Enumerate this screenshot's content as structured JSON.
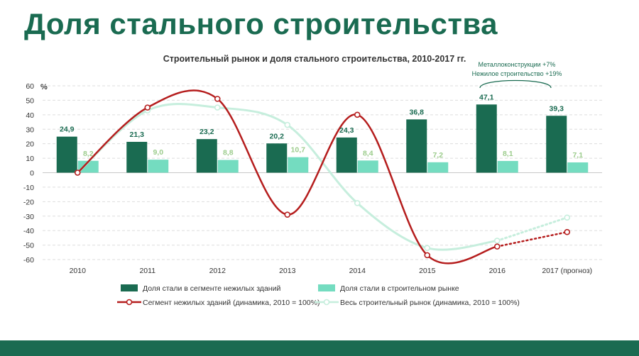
{
  "page": {
    "title": "Доля стального строительства"
  },
  "chart_data": {
    "type": "bar",
    "title": "Строительный рынок и доля стального строительства, 2010-2017 гг.",
    "ylabel": "%",
    "ylim": [
      -60,
      60
    ],
    "yticks": [
      60,
      50,
      40,
      30,
      20,
      10,
      0,
      -10,
      -20,
      -30,
      -40,
      -50,
      -60
    ],
    "grid": true,
    "legend_position": "bottom",
    "categories": [
      "2010",
      "2011",
      "2012",
      "2013",
      "2014",
      "2015",
      "2016",
      "2017 (прогноз)"
    ],
    "bar_series": [
      {
        "name": "Доля стали в сегменте нежилых зданий",
        "color": "#1a6b51",
        "label_color": "#1a6b51",
        "values": [
          24.9,
          21.3,
          23.2,
          20.2,
          24.3,
          36.8,
          47.1,
          39.3
        ],
        "labels": [
          "24,9",
          "21,3",
          "23,2",
          "20,2",
          "24,3",
          "36,8",
          "47,1",
          "39,3"
        ]
      },
      {
        "name": "Доля стали в строительном рынке",
        "color": "#74dcc0",
        "label_color": "#9ccc8c",
        "values": [
          8.2,
          9.0,
          8.8,
          10.7,
          8.4,
          7.2,
          8.1,
          7.1
        ],
        "labels": [
          "8,2",
          "9,0",
          "8,8",
          "10,7",
          "8,4",
          "7,2",
          "8,1",
          "7,1"
        ]
      }
    ],
    "line_series": [
      {
        "name": "Сегмент нежилых зданий (динамика, 2010 = 100%)",
        "color": "#b51d1d",
        "values": [
          0,
          45,
          51,
          -29,
          40,
          -57,
          -51,
          -41
        ],
        "forecast_from_index": 6
      },
      {
        "name": "Весь строительный рынок (динамика, 2010 = 100%)",
        "color": "#c6eedd",
        "values": [
          0,
          43,
          45,
          33,
          -21,
          -52,
          -47,
          -31
        ],
        "forecast_from_index": 6
      }
    ],
    "annotation": {
      "lines": [
        "Металлоконструкции +7%",
        "Нежилое строительство +19%"
      ]
    }
  }
}
